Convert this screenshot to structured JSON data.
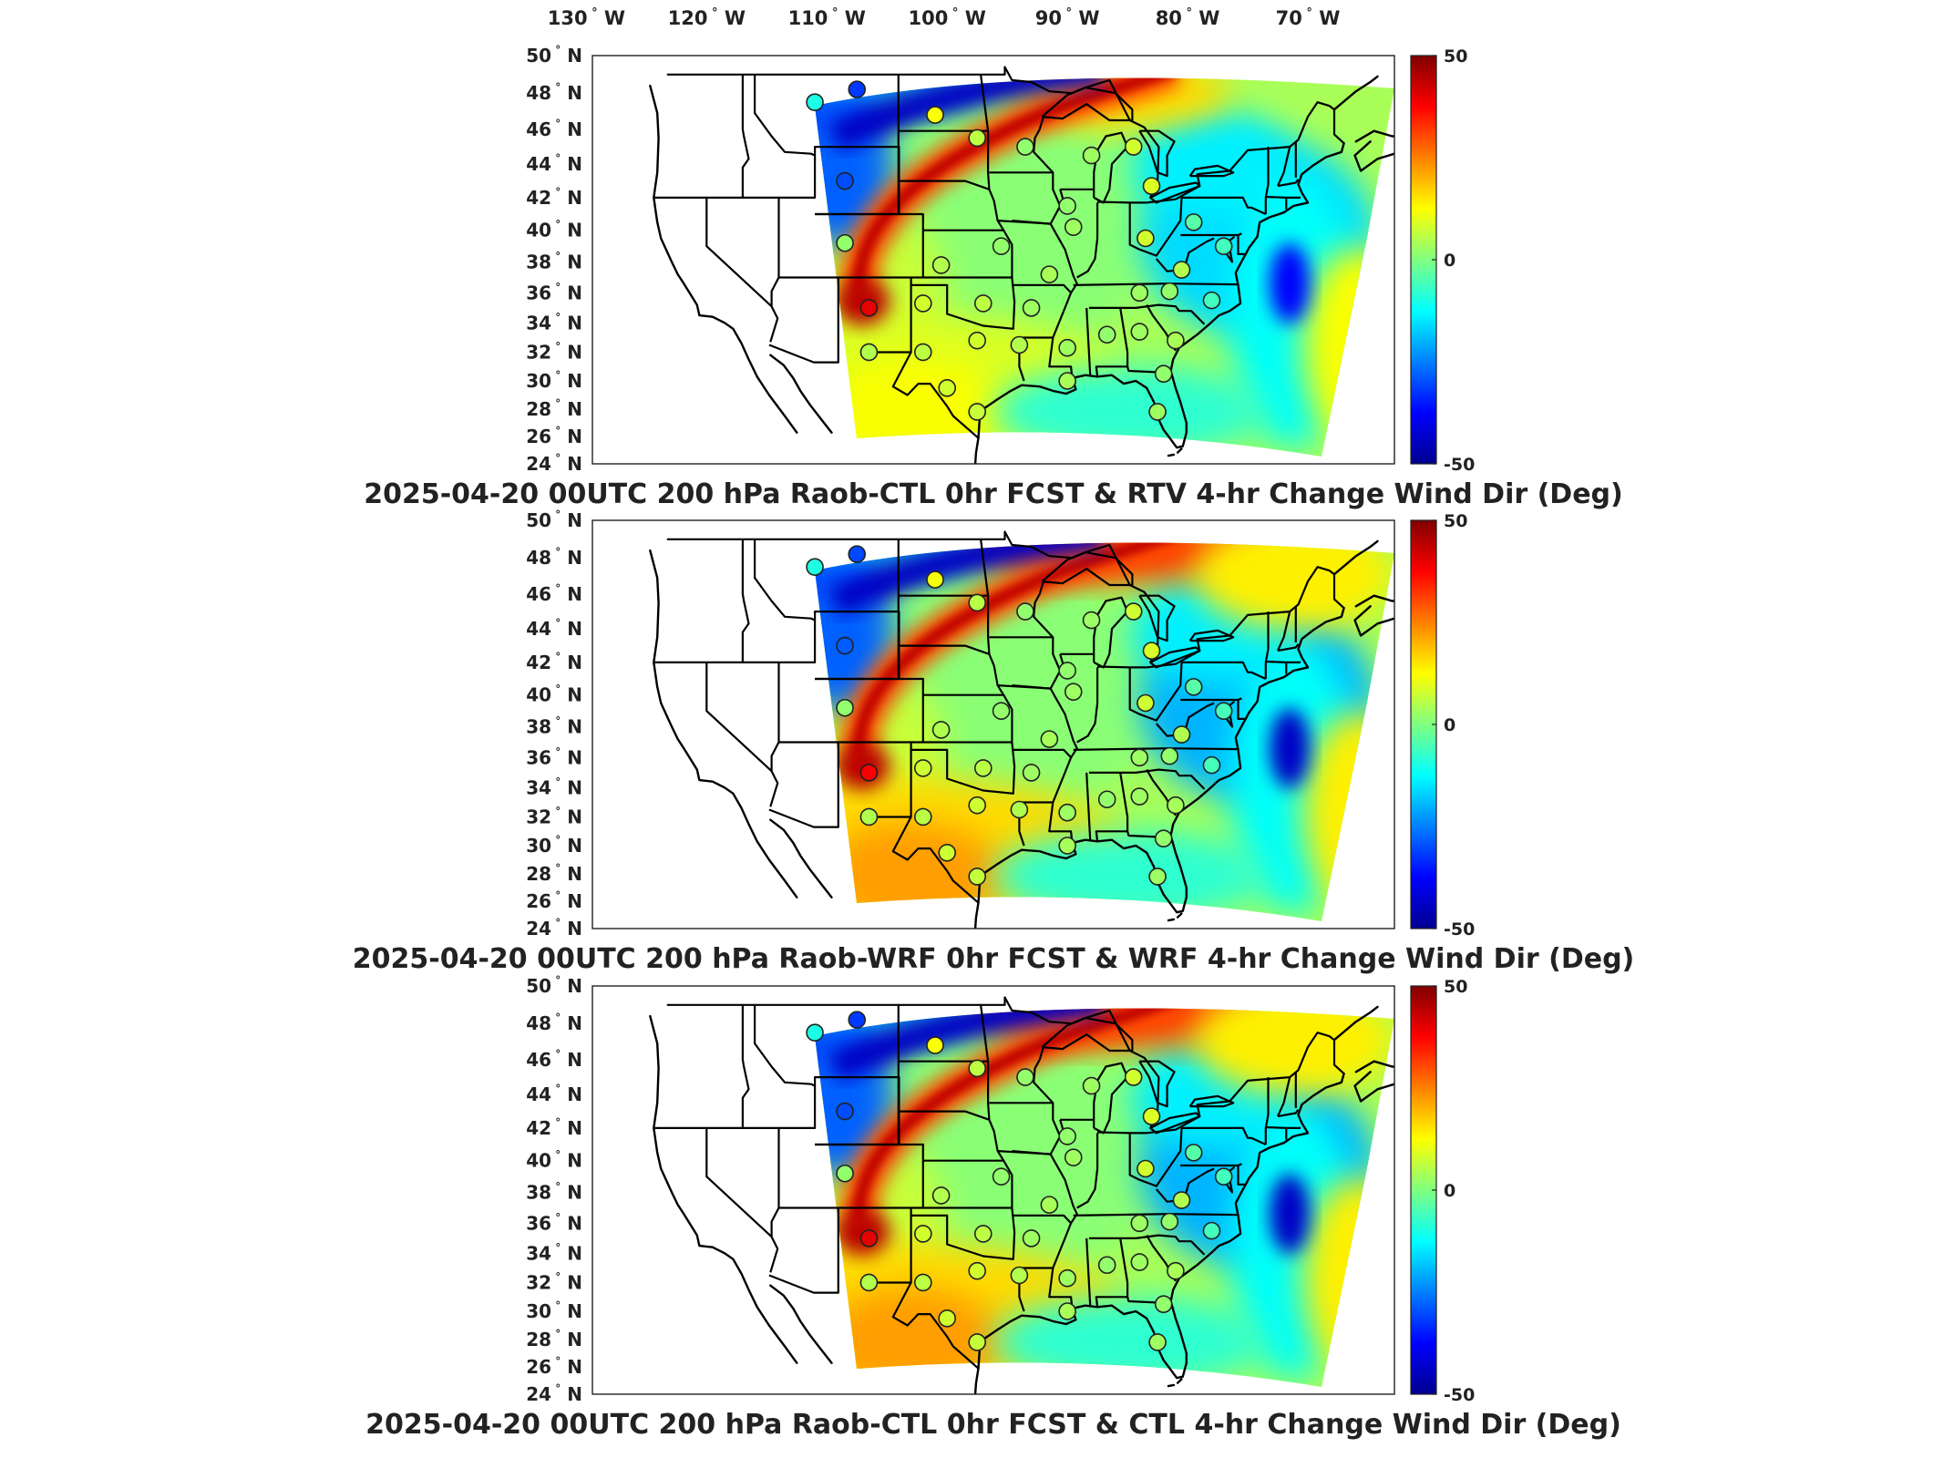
{
  "top_axis": {
    "lon_labels": [
      {
        "lon": -130,
        "label": "130",
        "hem": "W"
      },
      {
        "lon": -120,
        "label": "120",
        "hem": "W"
      },
      {
        "lon": -110,
        "label": "110",
        "hem": "W"
      },
      {
        "lon": -100,
        "label": "100",
        "hem": "W"
      },
      {
        "lon": -90,
        "label": "90",
        "hem": "W"
      },
      {
        "lon": -80,
        "label": "80",
        "hem": "W"
      },
      {
        "lon": -70,
        "label": "70",
        "hem": "W"
      }
    ]
  },
  "lat_labels": [
    {
      "lat": 50,
      "label": "50",
      "hem": "N"
    },
    {
      "lat": 48,
      "label": "48",
      "hem": "N"
    },
    {
      "lat": 46,
      "label": "46",
      "hem": "N"
    },
    {
      "lat": 44,
      "label": "44",
      "hem": "N"
    },
    {
      "lat": 42,
      "label": "42",
      "hem": "N"
    },
    {
      "lat": 40,
      "label": "40",
      "hem": "N"
    },
    {
      "lat": 38,
      "label": "38",
      "hem": "N"
    },
    {
      "lat": 36,
      "label": "36",
      "hem": "N"
    },
    {
      "lat": 34,
      "label": "34",
      "hem": "N"
    },
    {
      "lat": 32,
      "label": "32",
      "hem": "N"
    },
    {
      "lat": 30,
      "label": "30",
      "hem": "N"
    },
    {
      "lat": 28,
      "label": "28",
      "hem": "N"
    },
    {
      "lat": 26,
      "label": "26",
      "hem": "N"
    },
    {
      "lat": 24,
      "label": "24",
      "hem": "N"
    }
  ],
  "colorbar": {
    "min": -50,
    "max": 50,
    "tick_labels": [
      "50",
      "0",
      "-50"
    ],
    "colormap": "jet",
    "colors": [
      "#00008f",
      "#0000ff",
      "#00ffff",
      "#80ff80",
      "#ffff00",
      "#ff0000",
      "#800000"
    ]
  },
  "panels": [
    {
      "title": "2025-04-20 00UTC 200 hPa Raob-CTL 0hr FCST & RTV 4-hr Change Wind Dir (Deg)",
      "variant": 0
    },
    {
      "title": "2025-04-20 00UTC 200 hPa Raob-WRF 0hr FCST & WRF 4-hr Change Wind Dir (Deg)",
      "variant": 1
    },
    {
      "title": "2025-04-20 00UTC 200 hPa Raob-CTL 0hr FCST & CTL 4-hr Change Wind Dir (Deg)",
      "variant": 2
    }
  ],
  "stations": [
    {
      "lon": -111.0,
      "lat": 47.5,
      "value": -10
    },
    {
      "lon": -107.5,
      "lat": 48.2,
      "value": -32
    },
    {
      "lon": -101.0,
      "lat": 46.8,
      "value": 12
    },
    {
      "lon": -97.5,
      "lat": 45.5,
      "value": 6
    },
    {
      "lon": -108.5,
      "lat": 43.0,
      "value": -30
    },
    {
      "lon": -93.5,
      "lat": 45.0,
      "value": 2
    },
    {
      "lon": -88.0,
      "lat": 44.5,
      "value": 3
    },
    {
      "lon": -84.5,
      "lat": 45.0,
      "value": 8
    },
    {
      "lon": -83.0,
      "lat": 42.7,
      "value": 9
    },
    {
      "lon": -90.0,
      "lat": 41.5,
      "value": 2
    },
    {
      "lon": -89.5,
      "lat": 40.2,
      "value": 3
    },
    {
      "lon": -83.5,
      "lat": 39.5,
      "value": 8
    },
    {
      "lon": -79.5,
      "lat": 40.5,
      "value": -4
    },
    {
      "lon": -77.0,
      "lat": 39.0,
      "value": -6
    },
    {
      "lon": -80.5,
      "lat": 37.5,
      "value": 5
    },
    {
      "lon": -78.0,
      "lat": 35.5,
      "value": -6
    },
    {
      "lon": -108.5,
      "lat": 39.2,
      "value": 2
    },
    {
      "lon": -100.5,
      "lat": 37.8,
      "value": 5
    },
    {
      "lon": -95.5,
      "lat": 39.0,
      "value": 2
    },
    {
      "lon": -91.5,
      "lat": 37.2,
      "value": 4
    },
    {
      "lon": -106.5,
      "lat": 35.0,
      "value": 40
    },
    {
      "lon": -102.0,
      "lat": 35.3,
      "value": 8
    },
    {
      "lon": -97.0,
      "lat": 35.3,
      "value": 6
    },
    {
      "lon": -93.0,
      "lat": 35.0,
      "value": 3
    },
    {
      "lon": -84.0,
      "lat": 36.0,
      "value": 3
    },
    {
      "lon": -81.5,
      "lat": 36.1,
      "value": 2
    },
    {
      "lon": -106.5,
      "lat": 32.0,
      "value": 5
    },
    {
      "lon": -102.0,
      "lat": 32.0,
      "value": 6
    },
    {
      "lon": -97.5,
      "lat": 32.8,
      "value": 8
    },
    {
      "lon": -94.0,
      "lat": 32.5,
      "value": 5
    },
    {
      "lon": -90.0,
      "lat": 32.3,
      "value": 3
    },
    {
      "lon": -86.7,
      "lat": 33.2,
      "value": 2
    },
    {
      "lon": -84.0,
      "lat": 33.4,
      "value": 3
    },
    {
      "lon": -81.0,
      "lat": 32.8,
      "value": 4
    },
    {
      "lon": -100.0,
      "lat": 29.5,
      "value": 8
    },
    {
      "lon": -97.5,
      "lat": 27.8,
      "value": 7
    },
    {
      "lon": -90.0,
      "lat": 30.0,
      "value": 4
    },
    {
      "lon": -82.0,
      "lat": 30.5,
      "value": 2
    },
    {
      "lon": -82.5,
      "lat": 27.8,
      "value": 3
    }
  ]
}
